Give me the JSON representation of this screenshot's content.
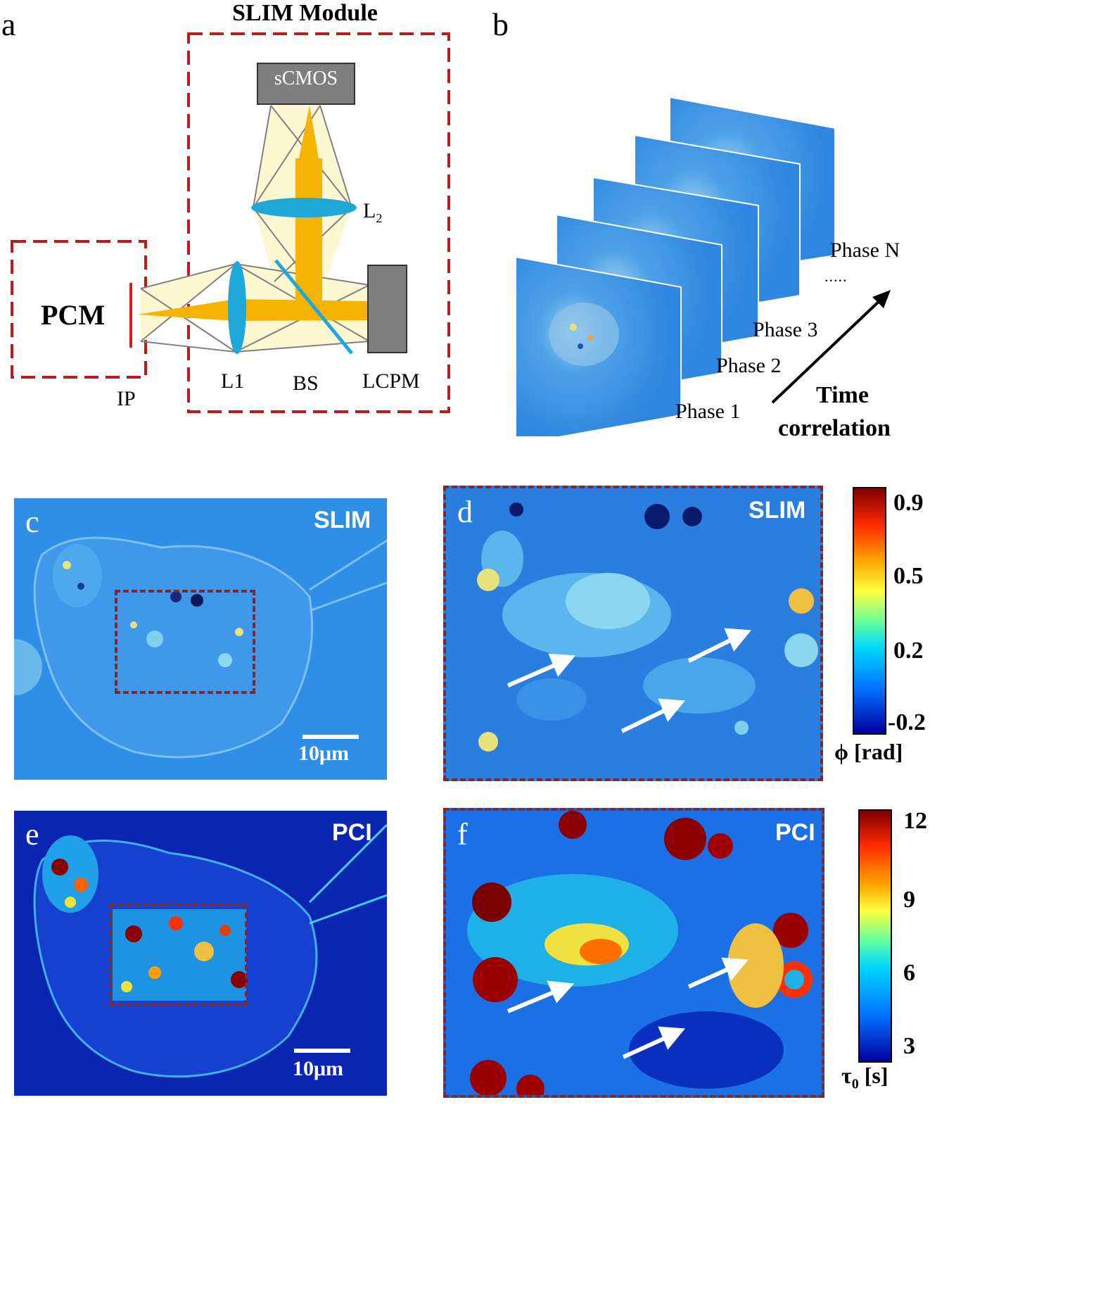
{
  "figure": {
    "panel_a": {
      "letter": "a",
      "title": "SLIM Module",
      "camera": "sCMOS",
      "pcm": "PCM",
      "lens2": "L",
      "lens2_sub": "2",
      "lens1": "L1",
      "beamsplitter": "BS",
      "modulator": "LCPM",
      "image_plane": "IP"
    },
    "panel_b": {
      "letter": "b",
      "frames": [
        "Phase 1",
        "Phase 2",
        "Phase 3",
        "Phase N"
      ],
      "ellipsis": ".....",
      "arrow_label_line1": "Time",
      "arrow_label_line2": "correlation"
    },
    "panel_c": {
      "letter": "c",
      "tag": "SLIM",
      "scalebar": "10μm"
    },
    "panel_d": {
      "letter": "d",
      "tag": "SLIM"
    },
    "panel_e": {
      "letter": "e",
      "tag": "PCI",
      "scalebar": "10μm"
    },
    "panel_f": {
      "letter": "f",
      "tag": "PCI"
    },
    "colorbar_phase": {
      "ticks": [
        "0.9",
        "0.5",
        "0.2",
        "-0.2"
      ],
      "label": "ϕ [rad]"
    },
    "colorbar_tau": {
      "ticks": [
        "12",
        "9",
        "6",
        "3"
      ],
      "label_main": "τ",
      "label_sub": "0",
      "label_unit": " [s]"
    },
    "colors": {
      "dash_red": "#b81c1c",
      "beam_orange": "#f6b300",
      "lens_cyan": "#1ea7d9",
      "light_cone": "#fdf7d2",
      "slim_blue": "#2e8ae6",
      "inset_border": "#7b2b2b"
    }
  }
}
